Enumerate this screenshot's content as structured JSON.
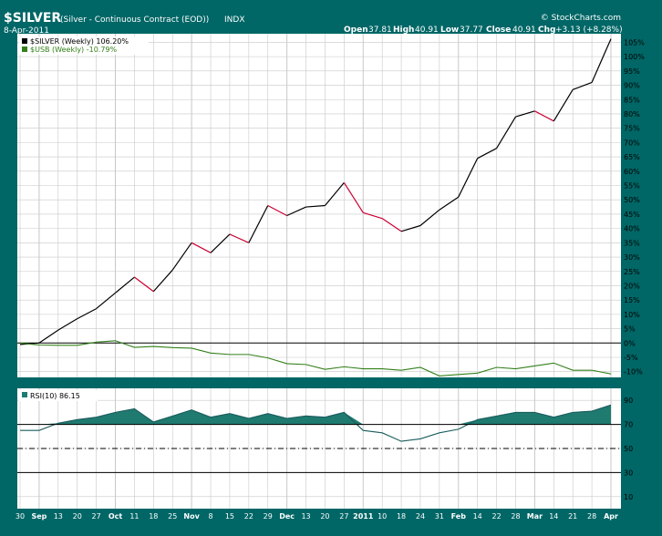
{
  "header": {
    "symbol": "$SILVER",
    "description": "(Silver - Continuous Contract (EOD))",
    "exchange": "INDX",
    "date": "8-Apr-2011",
    "watermark": "© StockCharts.com",
    "quote": {
      "open_label": "Open",
      "open": "37.81",
      "high_label": "High",
      "high": "40.91",
      "low_label": "Low",
      "low": "37.77",
      "close_label": "Close",
      "close": "40.91",
      "chg_label": "Chg",
      "chg": "+3.13 (+8.28%)"
    }
  },
  "colors": {
    "frame": "#006666",
    "panel": "#ffffff",
    "grid": "#c8c8c8",
    "silver_up": "#000000",
    "silver_down": "#cc0033",
    "usb": "#33801a",
    "rsi_line": "#1a5c5c",
    "rsi_fill": "#1f7a70",
    "quote_text": "#003366"
  },
  "chart_data": [
    {
      "type": "line",
      "title": "$SILVER (Silver - Continuous Contract (EOD))",
      "y_unit": "%",
      "ylim": [
        -12,
        108
      ],
      "y_ticks": [
        -10,
        -5,
        0,
        5,
        10,
        15,
        20,
        25,
        30,
        35,
        40,
        45,
        50,
        55,
        60,
        65,
        70,
        75,
        80,
        85,
        90,
        95,
        100,
        105
      ],
      "y_tick_labels": [
        "-10%",
        "-5%",
        "0%",
        "5%",
        "10%",
        "15%",
        "20%",
        "25%",
        "30%",
        "35%",
        "40%",
        "45%",
        "50%",
        "55%",
        "60%",
        "65%",
        "70%",
        "75%",
        "80%",
        "85%",
        "90%",
        "95%",
        "100%",
        "105%"
      ],
      "x_tick_labels": [
        "30",
        "Sep",
        "13",
        "20",
        "27",
        "Oct",
        "11",
        "18",
        "25",
        "Nov",
        "8",
        "15",
        "22",
        "29",
        "Dec",
        "13",
        "20",
        "27",
        "2011",
        "10",
        "18",
        "24",
        "31",
        "Feb",
        "14",
        "22",
        "28",
        "Mar",
        "14",
        "21",
        "28",
        "Apr"
      ],
      "grid": true,
      "legend_position": "top-left",
      "series": [
        {
          "name": "$SILVER (Weekly) 106.20%",
          "values": [
            -0.5,
            0,
            4.5,
            8.5,
            12,
            17.5,
            23,
            18,
            25.5,
            35,
            31.5,
            38,
            35,
            48,
            44.5,
            47.5,
            48,
            56,
            45.5,
            43.5,
            39,
            41,
            46.5,
            51,
            64.5,
            68,
            79,
            81,
            77.5,
            88.5,
            91,
            106.2
          ]
        },
        {
          "name": "$USB (Weekly) -10.79%",
          "values": [
            0,
            -0.7,
            -0.8,
            -0.8,
            0.3,
            0.8,
            -1.5,
            -1.2,
            -1.6,
            -1.8,
            -3.5,
            -4.0,
            -4.0,
            -5.2,
            -7.2,
            -7.5,
            -9.2,
            -8.3,
            -9.0,
            -9.0,
            -9.5,
            -8.5,
            -11.5,
            -11.0,
            -10.5,
            -8.5,
            -9.0,
            -8.0,
            -7.0,
            -9.5,
            -9.5,
            -10.79
          ]
        }
      ]
    },
    {
      "type": "area",
      "title": "RSI(10) 86.15",
      "ylim": [
        0,
        100
      ],
      "y_ticks": [
        10,
        30,
        50,
        70,
        90
      ],
      "reference_lines": [
        70,
        50,
        30
      ],
      "series": [
        {
          "name": "RSI(10) 86.15",
          "values": [
            65,
            65,
            71,
            74,
            76,
            80,
            83,
            72,
            77,
            82,
            76,
            79,
            75,
            79,
            75,
            77,
            76,
            80,
            65,
            63,
            56,
            58,
            63,
            66,
            74,
            77,
            80,
            80,
            76,
            80,
            81,
            86.15
          ]
        }
      ]
    }
  ]
}
